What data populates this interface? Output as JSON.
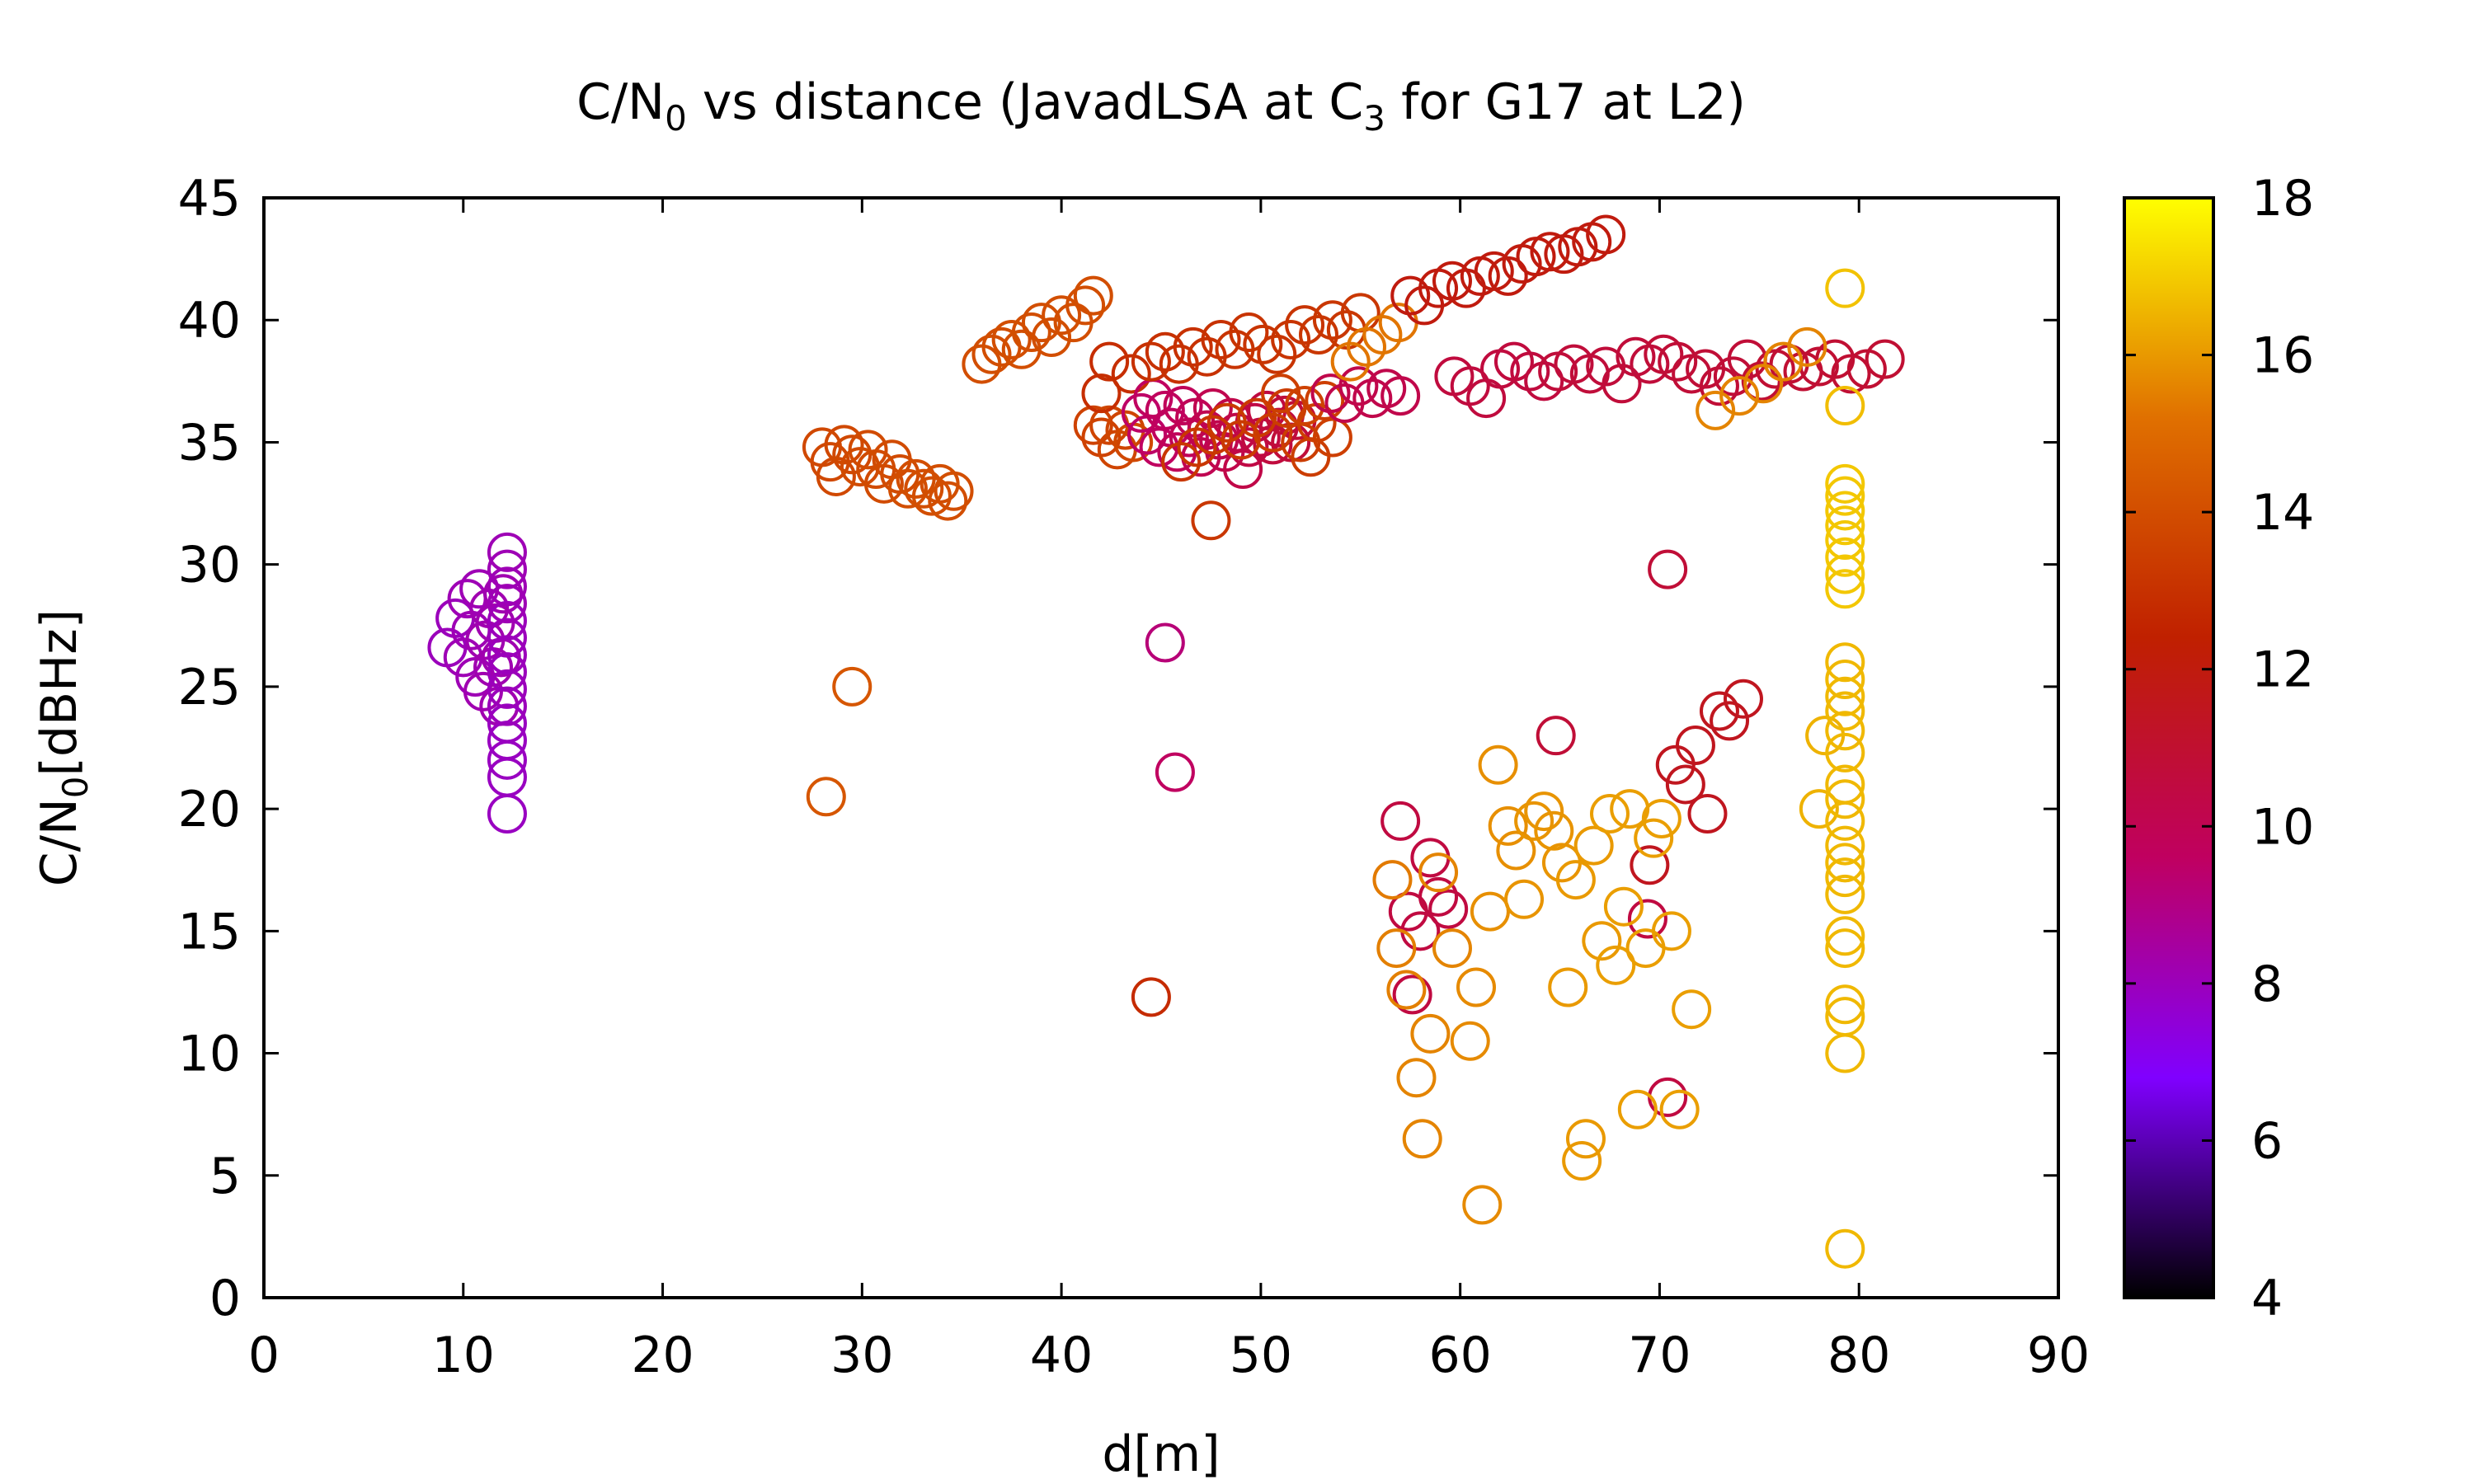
{
  "chart_data": {
    "type": "scatter",
    "title": {
      "pre": "C/N",
      "sub0": "0",
      "mid": " vs distance (JavadLSA at C",
      "sub1": "3",
      "post": " for G17 at L2)"
    },
    "xlabel": "d[m]",
    "ylabel": {
      "pre": "C/N",
      "sub": "0",
      "post": "[dBHz]"
    },
    "xlim": [
      0,
      90
    ],
    "ylim": [
      0,
      45
    ],
    "x_ticks": [
      "0",
      "10",
      "20",
      "30",
      "40",
      "50",
      "60",
      "70",
      "80",
      "90"
    ],
    "y_ticks": [
      "0",
      "5",
      "10",
      "15",
      "20",
      "25",
      "30",
      "35",
      "40",
      "45"
    ],
    "colorbar": {
      "range": [
        4,
        18
      ],
      "ticks": [
        "4",
        "6",
        "8",
        "10",
        "12",
        "14",
        "16",
        "18"
      ],
      "palette": [
        "#000000",
        "#8000ff",
        "#c00060",
        "#c02000",
        "#e07000",
        "#ffff00"
      ]
    },
    "grid": false,
    "marker": "open-circle",
    "points": [
      [
        9.2,
        26.6,
        8.0
      ],
      [
        9.6,
        27.8,
        8.0
      ],
      [
        10.0,
        26.2,
        8.1
      ],
      [
        10.2,
        28.6,
        8.1
      ],
      [
        10.4,
        27.3,
        8.1
      ],
      [
        10.6,
        25.4,
        8.1
      ],
      [
        10.8,
        29.0,
        8.1
      ],
      [
        11.0,
        24.8,
        8.2
      ],
      [
        11.1,
        26.9,
        8.2
      ],
      [
        11.3,
        28.2,
        8.2
      ],
      [
        11.5,
        25.8,
        8.2
      ],
      [
        11.6,
        27.6,
        8.2
      ],
      [
        11.8,
        24.2,
        8.2
      ],
      [
        11.9,
        26.2,
        8.2
      ],
      [
        12.0,
        28.8,
        8.2
      ],
      [
        12.2,
        19.8,
        7.9
      ],
      [
        12.2,
        21.3,
        7.9
      ],
      [
        12.2,
        22.0,
        7.9
      ],
      [
        12.2,
        22.8,
        7.9
      ],
      [
        12.2,
        23.5,
        7.9
      ],
      [
        12.2,
        24.2,
        8.0
      ],
      [
        12.2,
        24.9,
        8.0
      ],
      [
        12.2,
        25.6,
        8.0
      ],
      [
        12.2,
        26.3,
        8.0
      ],
      [
        12.2,
        27.0,
        8.0
      ],
      [
        12.2,
        27.7,
        8.0
      ],
      [
        12.2,
        28.4,
        8.1
      ],
      [
        12.2,
        29.1,
        8.1
      ],
      [
        12.2,
        29.8,
        8.1
      ],
      [
        12.2,
        30.5,
        8.1
      ],
      [
        28.2,
        20.5,
        14.3
      ],
      [
        29.5,
        25.0,
        14.3
      ],
      [
        28.0,
        34.8,
        13.8
      ],
      [
        28.4,
        34.2,
        13.8
      ],
      [
        28.7,
        33.6,
        13.8
      ],
      [
        29.1,
        34.9,
        13.8
      ],
      [
        29.5,
        34.5,
        13.8
      ],
      [
        29.9,
        34.0,
        13.9
      ],
      [
        30.3,
        34.7,
        13.9
      ],
      [
        30.7,
        33.9,
        13.9
      ],
      [
        31.1,
        33.3,
        13.9
      ],
      [
        31.5,
        34.3,
        13.9
      ],
      [
        31.9,
        33.7,
        13.9
      ],
      [
        32.3,
        33.1,
        14.0
      ],
      [
        32.7,
        33.5,
        14.0
      ],
      [
        33.1,
        33.1,
        14.0
      ],
      [
        33.5,
        32.8,
        14.0
      ],
      [
        33.9,
        33.3,
        14.0
      ],
      [
        34.3,
        32.6,
        14.0
      ],
      [
        34.6,
        33.0,
        14.0
      ],
      [
        36.0,
        38.2,
        14.0
      ],
      [
        36.5,
        38.6,
        14.0
      ],
      [
        37.0,
        38.9,
        14.0
      ],
      [
        37.5,
        39.2,
        14.0
      ],
      [
        38.0,
        38.8,
        14.0
      ],
      [
        38.5,
        39.5,
        14.0
      ],
      [
        39.0,
        39.9,
        14.0
      ],
      [
        39.5,
        39.3,
        14.0
      ],
      [
        40.0,
        40.2,
        14.0
      ],
      [
        40.6,
        39.9,
        14.0
      ],
      [
        41.2,
        40.6,
        14.0
      ],
      [
        41.6,
        41.0,
        14.0
      ],
      [
        41.6,
        35.7,
        13.6
      ],
      [
        42.0,
        35.2,
        13.6
      ],
      [
        42.4,
        35.7,
        13.7
      ],
      [
        42.8,
        34.7,
        13.7
      ],
      [
        43.2,
        35.5,
        13.7
      ],
      [
        43.6,
        35.0,
        13.8
      ],
      [
        42.0,
        37.0,
        12.9
      ],
      [
        42.4,
        38.3,
        12.9
      ],
      [
        43.5,
        37.8,
        12.9
      ],
      [
        44.0,
        36.2,
        9.5
      ],
      [
        44.3,
        35.3,
        9.5
      ],
      [
        44.6,
        36.8,
        9.6
      ],
      [
        44.9,
        34.8,
        9.6
      ],
      [
        45.2,
        36.3,
        9.7
      ],
      [
        45.5,
        35.6,
        9.7
      ],
      [
        45.8,
        34.6,
        9.8
      ],
      [
        46.1,
        36.5,
        9.8
      ],
      [
        46.4,
        35.2,
        9.9
      ],
      [
        46.7,
        36.0,
        9.9
      ],
      [
        47.0,
        34.4,
        10.0
      ],
      [
        47.3,
        35.5,
        10.0
      ],
      [
        47.6,
        36.4,
        10.1
      ],
      [
        47.9,
        35.1,
        10.1
      ],
      [
        48.2,
        34.6,
        10.2
      ],
      [
        48.5,
        36.0,
        10.2
      ],
      [
        48.8,
        35.4,
        10.3
      ],
      [
        49.1,
        33.9,
        10.3
      ],
      [
        49.4,
        34.8,
        10.4
      ],
      [
        49.7,
        35.8,
        10.4
      ],
      [
        50.0,
        35.2,
        10.5
      ],
      [
        50.3,
        36.3,
        10.5
      ],
      [
        50.6,
        34.9,
        10.6
      ],
      [
        50.9,
        35.6,
        10.6
      ],
      [
        51.2,
        36.1,
        10.7
      ],
      [
        51.5,
        35.0,
        10.7
      ],
      [
        51.8,
        35.9,
        10.8
      ],
      [
        46.0,
        34.2,
        13.2
      ],
      [
        46.8,
        34.8,
        13.2
      ],
      [
        47.6,
        35.3,
        13.2
      ],
      [
        48.3,
        35.8,
        13.3
      ],
      [
        49.0,
        35.1,
        13.3
      ],
      [
        49.8,
        36.0,
        13.3
      ],
      [
        50.6,
        35.4,
        13.4
      ],
      [
        51.3,
        36.4,
        13.4
      ],
      [
        52.0,
        35.0,
        13.4
      ],
      [
        52.5,
        34.4,
        13.4
      ],
      [
        52.8,
        35.8,
        13.5
      ],
      [
        53.2,
        36.7,
        13.5
      ],
      [
        53.6,
        35.2,
        13.5
      ],
      [
        51.0,
        37.0,
        13.5
      ],
      [
        52.2,
        36.5,
        13.6
      ],
      [
        47.5,
        31.8,
        13.2
      ],
      [
        44.5,
        38.3,
        13.0
      ],
      [
        45.2,
        38.7,
        13.0
      ],
      [
        45.9,
        38.2,
        13.0
      ],
      [
        46.6,
        38.9,
        13.0
      ],
      [
        47.3,
        38.5,
        13.0
      ],
      [
        48.0,
        39.2,
        13.0
      ],
      [
        48.7,
        38.8,
        13.1
      ],
      [
        49.4,
        39.5,
        13.1
      ],
      [
        50.1,
        39.0,
        13.1
      ],
      [
        50.8,
        38.6,
        13.1
      ],
      [
        51.5,
        39.2,
        13.1
      ],
      [
        52.2,
        39.8,
        13.1
      ],
      [
        52.9,
        39.4,
        13.2
      ],
      [
        53.6,
        40.0,
        13.2
      ],
      [
        54.3,
        39.6,
        13.2
      ],
      [
        55.0,
        40.3,
        13.2
      ],
      [
        53.5,
        37.0,
        10.2
      ],
      [
        54.2,
        36.6,
        10.2
      ],
      [
        54.9,
        37.3,
        10.2
      ],
      [
        55.6,
        36.8,
        10.2
      ],
      [
        56.3,
        37.2,
        10.2
      ],
      [
        57.0,
        36.9,
        10.2
      ],
      [
        54.5,
        38.3,
        15.3
      ],
      [
        55.3,
        38.9,
        15.3
      ],
      [
        56.1,
        39.4,
        15.3
      ],
      [
        56.9,
        39.9,
        15.3
      ],
      [
        57.5,
        41.0,
        12.0
      ],
      [
        58.2,
        40.6,
        12.0
      ],
      [
        58.9,
        41.3,
        12.0
      ],
      [
        59.6,
        41.6,
        12.0
      ],
      [
        60.3,
        41.3,
        12.0
      ],
      [
        61.0,
        41.8,
        12.0
      ],
      [
        61.7,
        42.0,
        12.0
      ],
      [
        62.4,
        41.8,
        12.0
      ],
      [
        63.1,
        42.3,
        12.0
      ],
      [
        63.8,
        42.6,
        12.0
      ],
      [
        64.5,
        42.8,
        12.0
      ],
      [
        65.2,
        42.7,
        12.0
      ],
      [
        65.9,
        43.0,
        12.0
      ],
      [
        66.6,
        43.2,
        12.0
      ],
      [
        67.3,
        43.5,
        12.0
      ],
      [
        59.7,
        37.7,
        10.6
      ],
      [
        60.5,
        37.3,
        10.6
      ],
      [
        61.3,
        36.8,
        10.6
      ],
      [
        62.0,
        38.0,
        10.6
      ],
      [
        62.7,
        38.3,
        10.6
      ],
      [
        63.5,
        37.9,
        10.6
      ],
      [
        64.2,
        37.5,
        10.6
      ],
      [
        64.9,
        37.9,
        10.7
      ],
      [
        65.7,
        38.2,
        10.7
      ],
      [
        66.5,
        37.8,
        10.7
      ],
      [
        67.3,
        38.1,
        10.7
      ],
      [
        68.1,
        37.4,
        10.7
      ],
      [
        68.8,
        38.5,
        10.7
      ],
      [
        69.5,
        38.2,
        10.7
      ],
      [
        70.2,
        38.6,
        10.8
      ],
      [
        70.9,
        38.3,
        10.8
      ],
      [
        71.6,
        37.8,
        10.8
      ],
      [
        72.3,
        38.0,
        10.8
      ],
      [
        73.0,
        37.3,
        10.8
      ],
      [
        73.7,
        37.7,
        10.8
      ],
      [
        74.4,
        38.4,
        10.8
      ],
      [
        75.1,
        37.5,
        10.9
      ],
      [
        75.8,
        38.0,
        10.9
      ],
      [
        76.5,
        38.2,
        10.9
      ],
      [
        77.2,
        37.9,
        10.9
      ],
      [
        78.0,
        38.1,
        10.9
      ],
      [
        78.8,
        38.4,
        10.9
      ],
      [
        79.6,
        37.8,
        10.9
      ],
      [
        80.4,
        38.0,
        10.9
      ],
      [
        81.3,
        38.4,
        10.9
      ],
      [
        72.8,
        36.3,
        15.6
      ],
      [
        74.0,
        36.9,
        15.6
      ],
      [
        75.2,
        37.4,
        15.6
      ],
      [
        76.2,
        38.3,
        15.6
      ],
      [
        77.4,
        38.9,
        15.6
      ],
      [
        45.2,
        26.8,
        9.2
      ],
      [
        45.7,
        21.5,
        9.6
      ],
      [
        44.5,
        12.3,
        12.8
      ],
      [
        70.4,
        29.8,
        10.8
      ],
      [
        64.8,
        23.0,
        10.8
      ],
      [
        57.0,
        19.5,
        10.5
      ],
      [
        57.4,
        15.8,
        10.5
      ],
      [
        57.6,
        12.4,
        10.5
      ],
      [
        58.0,
        15.0,
        10.5
      ],
      [
        58.5,
        18.0,
        10.5
      ],
      [
        58.9,
        16.4,
        10.5
      ],
      [
        59.4,
        15.9,
        10.5
      ],
      [
        69.4,
        15.5,
        10.5
      ],
      [
        70.4,
        8.2,
        10.5
      ],
      [
        69.5,
        17.7,
        11.5
      ],
      [
        70.8,
        21.8,
        11.5
      ],
      [
        71.3,
        21.0,
        11.5
      ],
      [
        71.8,
        22.6,
        11.5
      ],
      [
        72.4,
        19.8,
        11.5
      ],
      [
        73.0,
        24.0,
        11.5
      ],
      [
        73.5,
        23.6,
        11.5
      ],
      [
        74.2,
        24.5,
        11.5
      ],
      [
        56.6,
        17.1,
        15.4
      ],
      [
        56.8,
        14.3,
        15.5
      ],
      [
        57.3,
        12.6,
        15.5
      ],
      [
        57.8,
        9.0,
        15.6
      ],
      [
        58.1,
        6.5,
        15.6
      ],
      [
        58.5,
        10.8,
        15.6
      ],
      [
        58.9,
        17.4,
        15.6
      ],
      [
        59.6,
        14.3,
        15.6
      ],
      [
        60.5,
        10.5,
        15.7
      ],
      [
        60.8,
        12.7,
        15.7
      ],
      [
        61.1,
        3.8,
        15.7
      ],
      [
        61.5,
        15.8,
        15.8
      ],
      [
        61.9,
        21.8,
        15.8
      ],
      [
        62.4,
        19.3,
        15.8
      ],
      [
        62.8,
        18.3,
        15.8
      ],
      [
        63.2,
        16.3,
        15.9
      ],
      [
        63.7,
        19.5,
        15.9
      ],
      [
        64.2,
        19.9,
        15.9
      ],
      [
        64.7,
        19.1,
        15.9
      ],
      [
        65.1,
        17.8,
        15.9
      ],
      [
        65.4,
        12.7,
        16.0
      ],
      [
        65.8,
        17.1,
        16.0
      ],
      [
        66.1,
        5.6,
        16.0
      ],
      [
        66.3,
        6.5,
        16.0
      ],
      [
        66.7,
        18.5,
        16.0
      ],
      [
        67.1,
        14.6,
        16.0
      ],
      [
        67.5,
        19.8,
        16.1
      ],
      [
        67.8,
        13.6,
        16.1
      ],
      [
        68.2,
        16.0,
        16.1
      ],
      [
        68.5,
        20.0,
        16.1
      ],
      [
        68.9,
        7.7,
        16.1
      ],
      [
        69.3,
        14.3,
        16.1
      ],
      [
        69.7,
        18.8,
        16.1
      ],
      [
        70.1,
        19.6,
        16.1
      ],
      [
        70.6,
        15.0,
        16.1
      ],
      [
        71.0,
        7.7,
        16.1
      ],
      [
        71.6,
        11.8,
        16.1
      ],
      [
        78.0,
        20.0,
        16.5
      ],
      [
        78.3,
        23.0,
        16.5
      ],
      [
        79.3,
        2.0,
        16.6
      ],
      [
        79.3,
        10.0,
        16.6
      ],
      [
        79.3,
        11.5,
        16.6
      ],
      [
        79.3,
        12.0,
        16.6
      ],
      [
        79.3,
        14.3,
        16.6
      ],
      [
        79.3,
        14.8,
        16.6
      ],
      [
        79.3,
        16.5,
        16.6
      ],
      [
        79.3,
        17.2,
        16.6
      ],
      [
        79.3,
        17.8,
        16.6
      ],
      [
        79.3,
        18.5,
        16.6
      ],
      [
        79.3,
        19.5,
        16.6
      ],
      [
        79.3,
        20.4,
        16.6
      ],
      [
        79.3,
        21.0,
        16.6
      ],
      [
        79.3,
        22.3,
        16.6
      ],
      [
        79.3,
        23.2,
        16.6
      ],
      [
        79.3,
        24.0,
        16.6
      ],
      [
        79.3,
        24.6,
        16.6
      ],
      [
        79.3,
        25.3,
        16.6
      ],
      [
        79.3,
        26.0,
        16.6
      ],
      [
        79.3,
        29.0,
        16.9
      ],
      [
        79.3,
        29.6,
        16.9
      ],
      [
        79.3,
        30.3,
        16.9
      ],
      [
        79.3,
        31.0,
        16.9
      ],
      [
        79.3,
        31.6,
        16.9
      ],
      [
        79.3,
        32.2,
        16.9
      ],
      [
        79.3,
        32.8,
        16.9
      ],
      [
        79.3,
        33.3,
        16.9
      ],
      [
        79.3,
        36.5,
        16.7
      ],
      [
        79.3,
        41.3,
        16.8
      ]
    ]
  }
}
